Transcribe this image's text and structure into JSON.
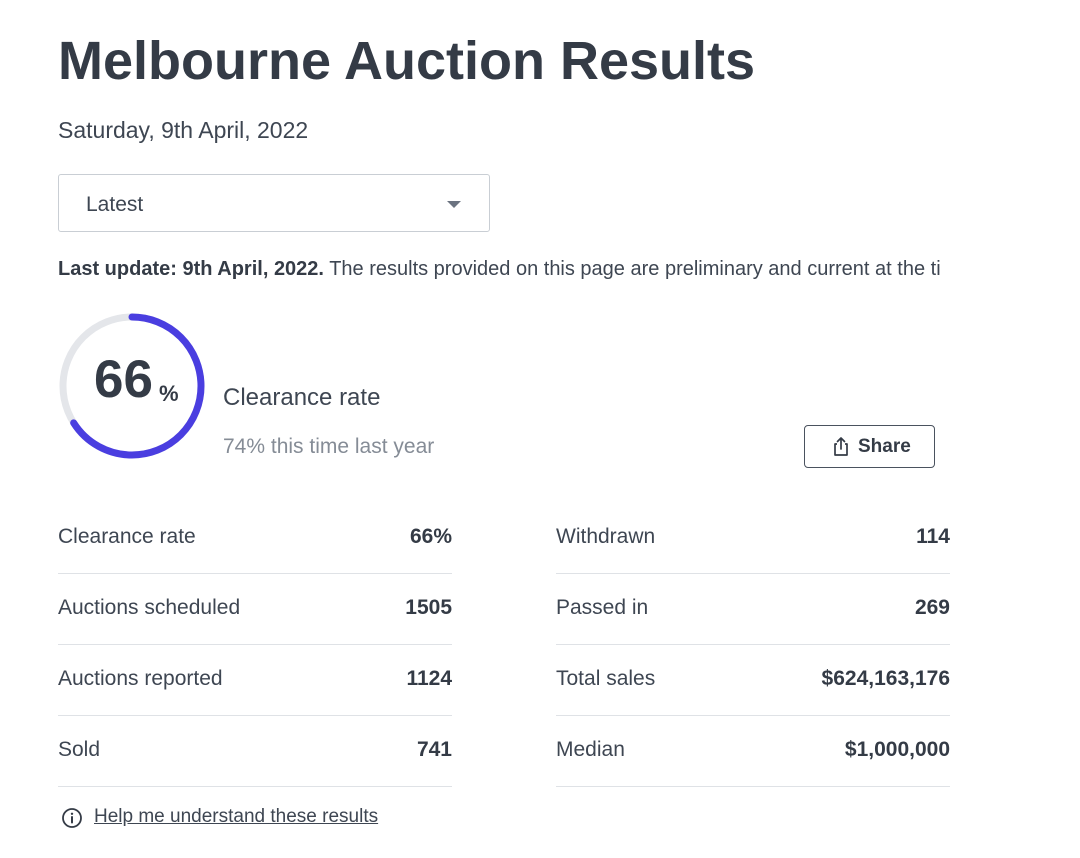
{
  "header": {
    "title": "Melbourne Auction Results",
    "date": "Saturday, 9th April, 2022"
  },
  "filter": {
    "selected": "Latest"
  },
  "update_notice": {
    "bold": "Last update: 9th April, 2022.",
    "text": " The results provided on this page are preliminary and current at the ti"
  },
  "summary": {
    "clearance_value": "66",
    "clearance_unit": "%",
    "clearance_fraction": 0.66,
    "clearance_label": "Clearance rate",
    "last_year": "74% this time last year",
    "share_label": "Share"
  },
  "stats_left": [
    {
      "label": "Clearance rate",
      "value": "66%"
    },
    {
      "label": "Auctions scheduled",
      "value": "1505"
    },
    {
      "label": "Auctions reported",
      "value": "1124"
    },
    {
      "label": "Sold",
      "value": "741"
    }
  ],
  "stats_right": [
    {
      "label": "Withdrawn",
      "value": "114"
    },
    {
      "label": "Passed in",
      "value": "269"
    },
    {
      "label": "Total sales",
      "value": "$624,163,176"
    },
    {
      "label": "Median",
      "value": "$1,000,000"
    }
  ],
  "help": {
    "link_text": "Help me understand these results"
  },
  "colors": {
    "gauge_fill": "#4a3ee0",
    "gauge_track": "#e4e6ea"
  },
  "icons": {
    "dropdown": "chevron-down-icon",
    "share": "share-icon",
    "help": "info-icon"
  }
}
